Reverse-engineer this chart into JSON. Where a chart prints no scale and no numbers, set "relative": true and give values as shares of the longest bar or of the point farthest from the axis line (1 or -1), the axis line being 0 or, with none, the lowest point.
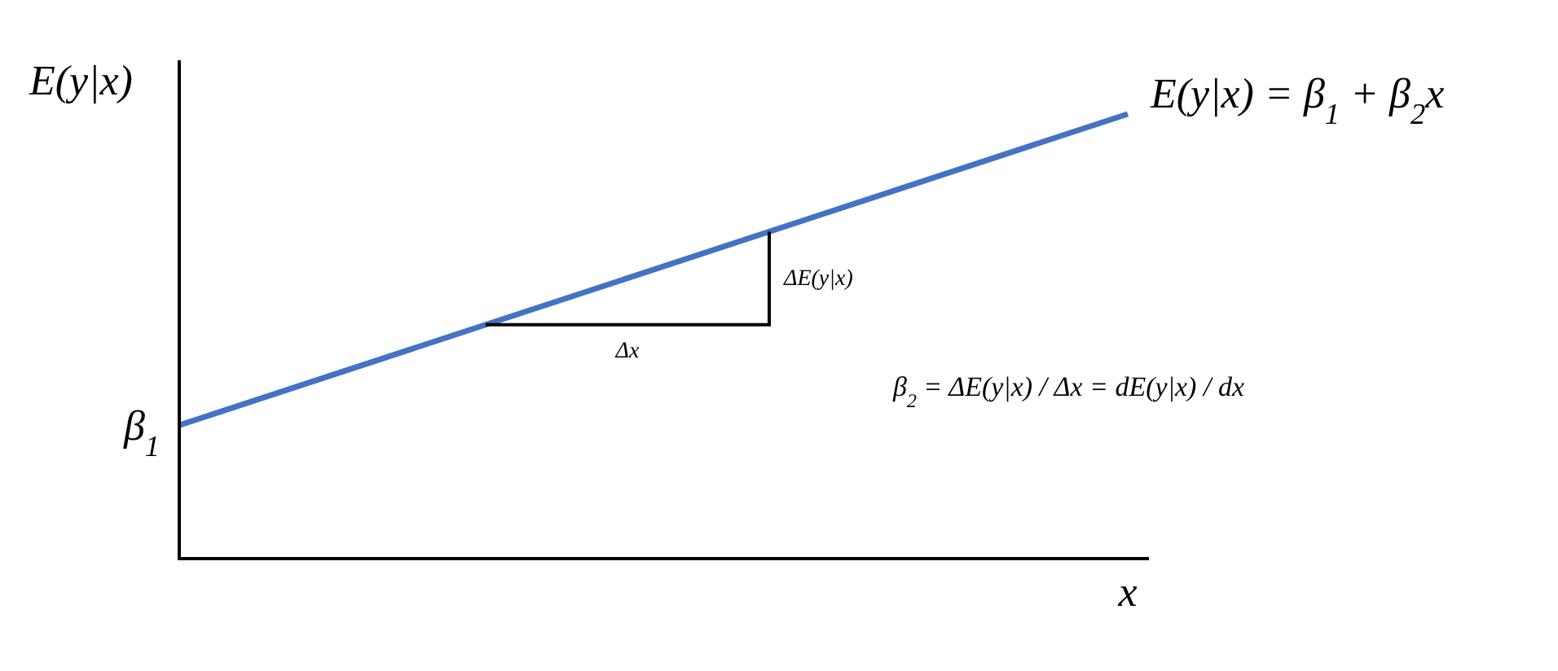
{
  "chart_data": {
    "type": "line",
    "relative": true,
    "xlabel": "x",
    "ylabel": "E(y|x)",
    "categories": [
      null,
      null
    ],
    "series": [
      {
        "name": "E(y|x) = β$_{1}$ + β$_{2}$x",
        "color": "#4472c4",
        "values": [
          0.3,
          1
        ]
      }
    ],
    "annotations": [
      "β$_{1}$",
      "Δx",
      "ΔE(y|x)",
      "β$_{2}$ = ΔE(y|x) / Δx = dE(y|x) / dx"
    ],
    "legend": false,
    "grid": false,
    "marker": "none",
    "line_style": "solid"
  }
}
